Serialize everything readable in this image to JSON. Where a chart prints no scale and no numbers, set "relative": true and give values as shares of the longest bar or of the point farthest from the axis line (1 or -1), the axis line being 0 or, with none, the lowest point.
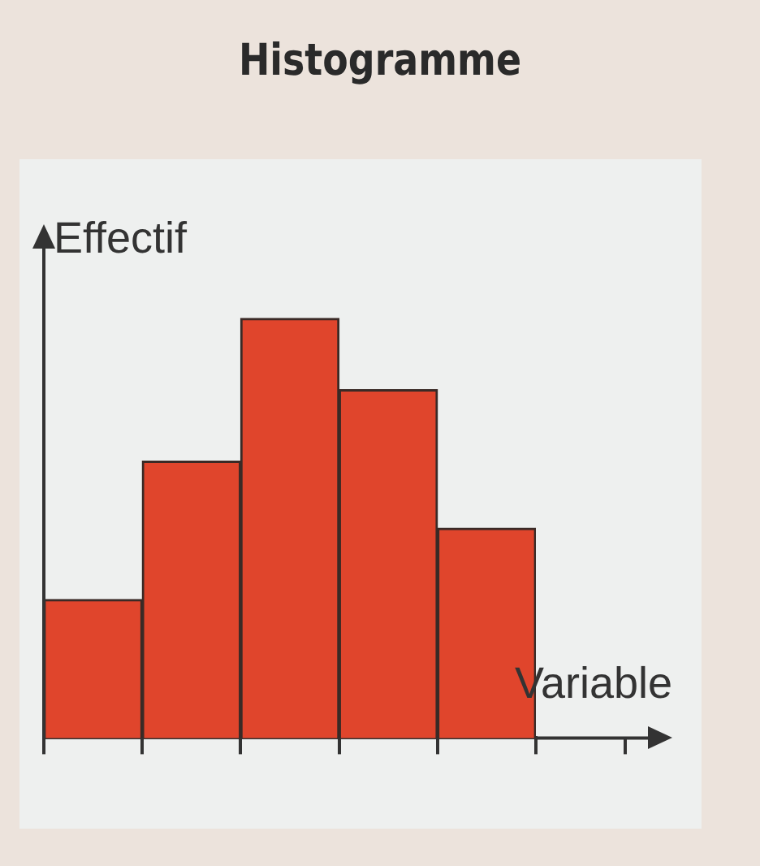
{
  "chart_data": {
    "type": "bar",
    "title": "Histogramme",
    "xlabel": "Variable",
    "ylabel": "Effectif",
    "relative": true,
    "categories": [
      null,
      null,
      null,
      null,
      null
    ],
    "values": [
      0.33,
      0.66,
      1,
      0.83,
      0.5
    ],
    "color": "#e0452c",
    "grid": false
  }
}
